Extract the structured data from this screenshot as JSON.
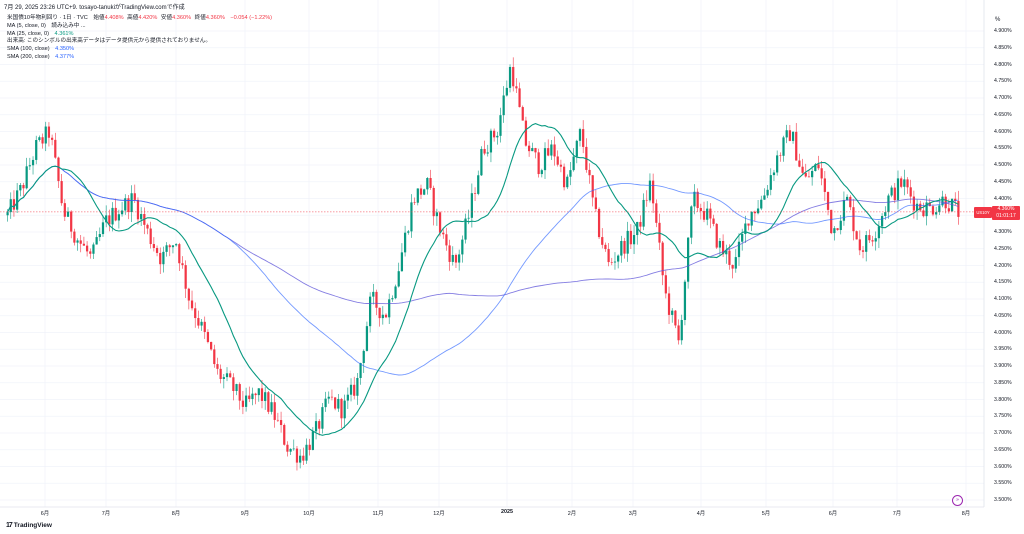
{
  "header": {
    "title": "7月 29, 2025 23:26 UTC+9.  tosayo-tanukiがTradingView.comで作成"
  },
  "legend": {
    "symbol": "米国債10年物利回り · 1日 · TVC",
    "open_label": "始値",
    "open": "4.408%",
    "high_label": "高値",
    "high": "4.420%",
    "low_label": "安値",
    "low": "4.360%",
    "close_label": "終値",
    "close": "4.360%",
    "change": "−0.054 (−1.22%)",
    "ma5_label": "MA (5, close, 0)",
    "ma5_value": "読み込み中 ...",
    "ma25_label": "MA (25, close, 0)",
    "ma25_value": "4.361%",
    "volume_label": "出来高",
    "volume_note": "このシンボルの出来高データはデータ提供元から提供されておりません。",
    "sma100_label": "SMA (100, close)",
    "sma100_value": "4.350%",
    "sma200_label": "SMA (200, close)",
    "sma200_value": "4.377%"
  },
  "y_axis": {
    "unit": "%",
    "ticks": [
      "4.900%",
      "4.850%",
      "4.800%",
      "4.750%",
      "4.700%",
      "4.650%",
      "4.600%",
      "4.550%",
      "4.500%",
      "4.450%",
      "4.400%",
      "4.350%",
      "4.300%",
      "4.250%",
      "4.200%",
      "4.150%",
      "4.100%",
      "4.050%",
      "4.000%",
      "3.950%",
      "3.900%",
      "3.850%",
      "3.800%",
      "3.750%",
      "3.700%",
      "3.650%",
      "3.600%",
      "3.550%",
      "3.500%"
    ]
  },
  "x_axis": {
    "ticks": [
      "6月",
      "7月",
      "8月",
      "9月",
      "10月",
      "11月",
      "12月",
      "2025",
      "2月",
      "3月",
      "4月",
      "5月",
      "6月",
      "7月",
      "8月"
    ]
  },
  "price_tag": {
    "symbol": "US10Y",
    "price": "4.360%",
    "countdown": "01:01:17"
  },
  "branding": {
    "logo": "17",
    "name": "TradingView"
  },
  "colors": {
    "up": "#089981",
    "down": "#f23645",
    "ma25": "#089981",
    "sma100": "#2962ff",
    "sma200": "#5b51d8"
  },
  "chart_data": {
    "type": "candlestick",
    "y_range": [
      3.5,
      4.9
    ],
    "x_labels": [
      "6月",
      "7月",
      "8月",
      "9月",
      "10月",
      "11月",
      "12月",
      "2025",
      "2月",
      "3月",
      "4月",
      "5月",
      "6月",
      "7月",
      "8月"
    ],
    "close_path": [
      4.35,
      4.43,
      4.55,
      4.6,
      4.36,
      4.28,
      4.22,
      4.33,
      4.37,
      4.4,
      4.3,
      4.22,
      4.28,
      4.1,
      4.0,
      3.88,
      3.84,
      3.78,
      3.82,
      3.76,
      3.66,
      3.63,
      3.7,
      3.8,
      3.77,
      3.85,
      4.1,
      4.05,
      4.2,
      4.4,
      4.44,
      4.3,
      4.2,
      4.35,
      4.55,
      4.6,
      4.8,
      4.57,
      4.5,
      4.55,
      4.44,
      4.6,
      4.35,
      4.2,
      4.26,
      4.3,
      4.45,
      4.12,
      3.97,
      4.4,
      4.35,
      4.25,
      4.2,
      4.35,
      4.4,
      4.52,
      4.6,
      4.45,
      4.5,
      4.3,
      4.4,
      4.25,
      4.3,
      4.4,
      4.45,
      4.38,
      4.37,
      4.4,
      4.36
    ],
    "series": [
      {
        "name": "MA (25, close, 0)",
        "last": 4.361
      },
      {
        "name": "SMA (100, close)",
        "last": 4.35
      },
      {
        "name": "SMA (200, close)",
        "last": 4.377
      }
    ],
    "last_close": 4.36
  }
}
